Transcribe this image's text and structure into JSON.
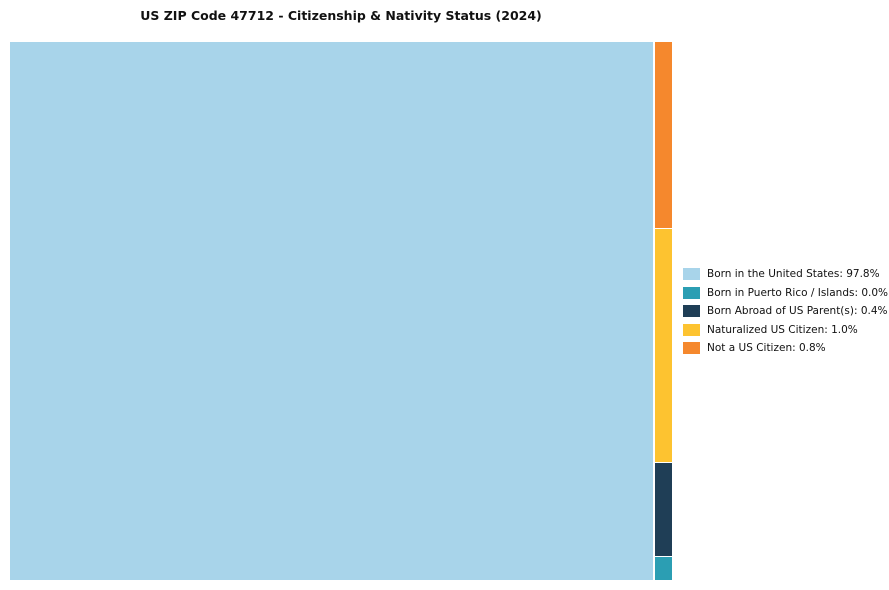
{
  "chart_data": {
    "type": "treemap",
    "title": "US ZIP Code 47712 - Citizenship & Nativity Status (2024)",
    "categories": [
      "Born in the United States",
      "Born in Puerto Rico / Islands",
      "Born Abroad of US Parent(s)",
      "Naturalized US Citizen",
      "Not a US Citizen"
    ],
    "values": [
      97.8,
      0.0,
      0.4,
      1.0,
      0.8
    ],
    "colors": [
      "#A8D4EA",
      "#2B9EB3",
      "#1F3E56",
      "#FDC330",
      "#F5882D"
    ],
    "legend_labels": [
      "Born in the United States: 97.8%",
      "Born in Puerto Rico / Islands: 0.0%",
      "Born Abroad of US Parent(s): 0.4%",
      "Naturalized US Citizen: 1.0%",
      "Not a US Citizen: 0.8%"
    ],
    "strip_order": [
      "Not a US Citizen",
      "Naturalized US Citizen",
      "Born Abroad of US Parent(s)",
      "Born in Puerto Rico / Islands"
    ],
    "strip_min_value": 0.1,
    "legend_position": "right",
    "xlabel": "",
    "ylabel": ""
  }
}
